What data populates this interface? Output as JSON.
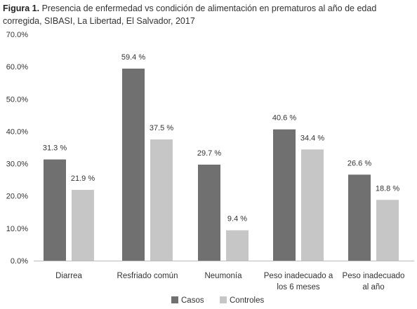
{
  "caption": {
    "label": "Figura 1.",
    "text": "Presencia de enfermedad vs condición de alimentación en prematuros al año de edad corregida, SIBASI, La Libertad, El Salvador, 2017"
  },
  "chart_data": {
    "type": "bar",
    "title": "",
    "xlabel": "",
    "ylabel": "",
    "ylim": [
      0,
      70
    ],
    "yticks": [
      0,
      10,
      20,
      30,
      40,
      50,
      60,
      70
    ],
    "ytick_labels": [
      "0.0%",
      "10.0%",
      "20.0%",
      "30.0%",
      "40.0%",
      "50.0%",
      "60.0%",
      "70.0%"
    ],
    "grid": false,
    "legend_position": "bottom",
    "categories": [
      [
        "Diarrea"
      ],
      [
        "Resfriado común"
      ],
      [
        "Neumonía"
      ],
      [
        "Peso inadecuado a",
        "los 6 meses"
      ],
      [
        "Peso inadecuado",
        "al año"
      ]
    ],
    "series": [
      {
        "name": "Casos",
        "color": "#707070",
        "values": [
          31.3,
          59.4,
          29.7,
          40.6,
          26.6
        ],
        "labels": [
          "31.3 %",
          "59.4 %",
          "29.7 %",
          "40.6 %",
          "26.6 %"
        ]
      },
      {
        "name": "Controles",
        "color": "#c6c6c6",
        "values": [
          21.9,
          37.5,
          9.4,
          34.4,
          18.8
        ],
        "labels": [
          "21.9 %",
          "37.5 %",
          "9.4 %",
          "34.4 %",
          "18.8 %"
        ]
      }
    ]
  }
}
